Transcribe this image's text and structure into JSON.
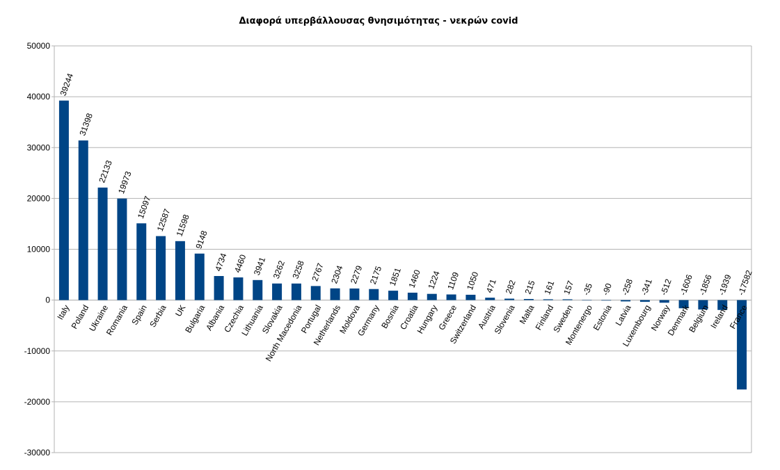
{
  "chart_data": {
    "type": "bar",
    "title": "Διαφορά υπερβάλλουσας θνησιμότητας - νεκρών covid",
    "xlabel": "",
    "ylabel": "",
    "ylim": [
      -30000,
      50000
    ],
    "yticks": [
      50000,
      40000,
      30000,
      20000,
      10000,
      0,
      -10000,
      -20000,
      -30000
    ],
    "grid": true,
    "bar_color": "#004586",
    "categories": [
      "Italy",
      "Poland",
      "Ukraine",
      "Romania",
      "Spain",
      "Serbia",
      "UK",
      "Bulgaria",
      "Albania",
      "Czechia",
      "Lithuania",
      "Slovakia",
      "North Macedonia",
      "Portugal",
      "Netherlands",
      "Moldova",
      "Germany",
      "Bosnia",
      "Croatia",
      "Hungary",
      "Greece",
      "Switzerland",
      "Austria",
      "Slovenia",
      "Malta",
      "Finland",
      "Sweden",
      "Montenergo",
      "Estonia",
      "Latvia",
      "Luxembourg",
      "Norway",
      "Denmark",
      "Belgium",
      "Ireland",
      "France"
    ],
    "values": [
      39244,
      31398,
      22133,
      19973,
      15097,
      12587,
      11598,
      9148,
      4734,
      4460,
      3941,
      3262,
      3258,
      2767,
      2304,
      2279,
      2175,
      1851,
      1460,
      1224,
      1109,
      1050,
      471,
      282,
      215,
      161,
      157,
      -35,
      -90,
      -258,
      -341,
      -512,
      -1606,
      -1856,
      -1939,
      -17582
    ]
  }
}
